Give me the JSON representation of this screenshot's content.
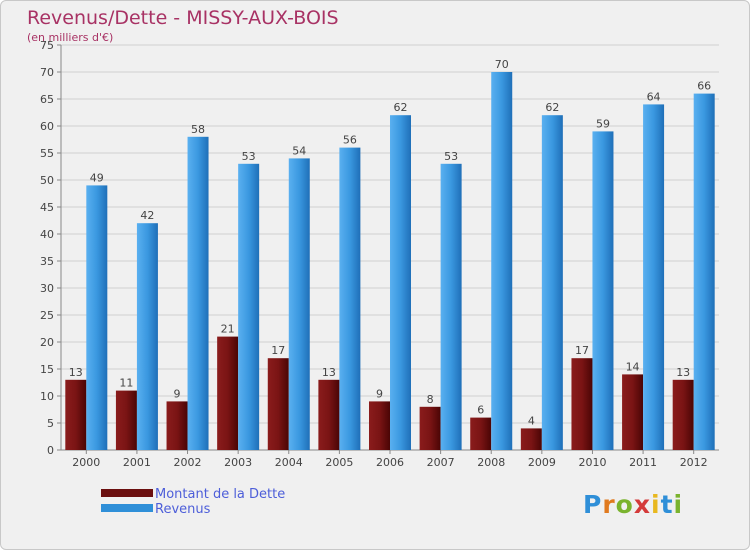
{
  "chart_data": {
    "type": "bar",
    "title": "Revenus/Dette - MISSY-AUX-BOIS",
    "subtitle": "(en milliers d'€)",
    "categories": [
      "2000",
      "2001",
      "2002",
      "2003",
      "2004",
      "2005",
      "2006",
      "2007",
      "2008",
      "2009",
      "2010",
      "2011",
      "2012"
    ],
    "series": [
      {
        "name": "Montant de la Dette",
        "color": "#6b0f0f",
        "values": [
          13,
          11,
          9,
          21,
          17,
          13,
          9,
          8,
          6,
          4,
          17,
          14,
          13
        ]
      },
      {
        "name": "Revenus",
        "color": "#2f8fd8",
        "values": [
          49,
          42,
          58,
          53,
          54,
          56,
          62,
          53,
          70,
          62,
          59,
          64,
          66
        ]
      }
    ],
    "ylim": [
      0,
      75
    ],
    "yticks": [
      0,
      5,
      10,
      15,
      20,
      25,
      30,
      35,
      40,
      45,
      50,
      55,
      60,
      65,
      70,
      75
    ],
    "grid": true,
    "legend": "bottom-left"
  },
  "logo": {
    "text": "Proxiti"
  }
}
